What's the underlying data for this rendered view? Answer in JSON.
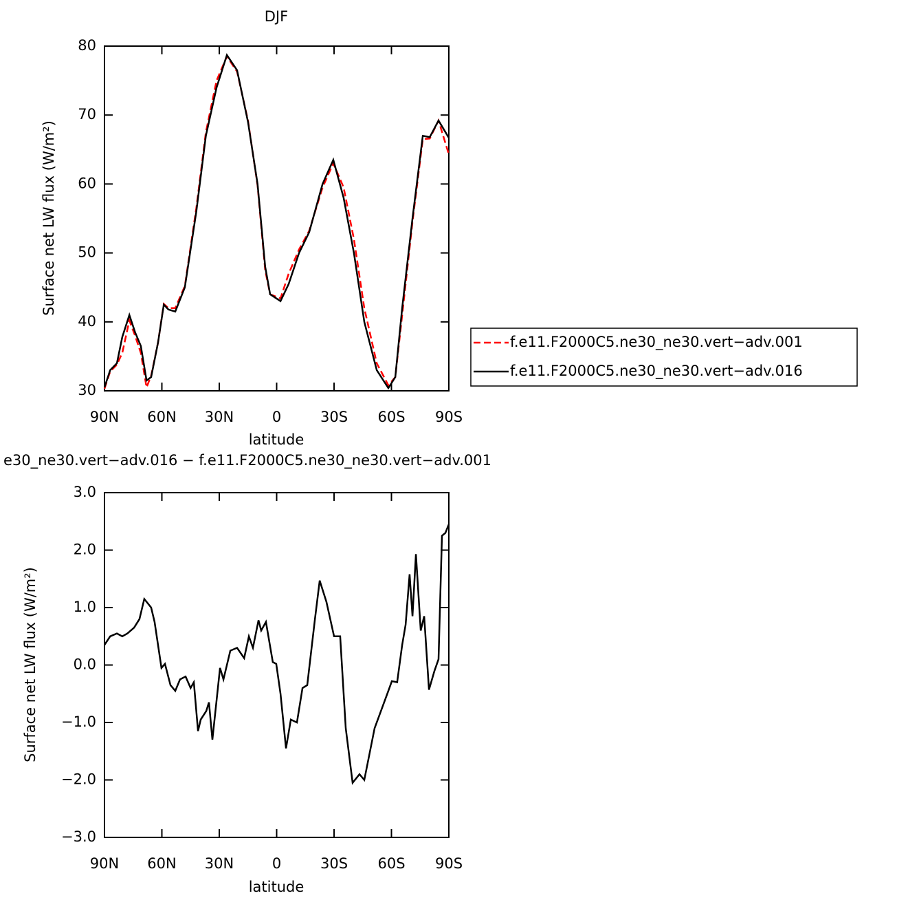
{
  "chart_data": [
    {
      "type": "line",
      "title": "DJF",
      "xlabel": "latitude",
      "ylabel": "Surface net LW flux (W/m²)",
      "x": [
        90,
        87,
        83.5,
        80.7,
        77,
        74,
        71,
        68,
        65.6,
        62,
        59,
        56.6,
        53,
        48,
        42,
        37,
        31.4,
        26,
        20.7,
        15,
        10,
        6,
        3.4,
        -2,
        -6.3,
        -11.7,
        -17,
        -24,
        -29.6,
        -35,
        -40.4,
        -45.8,
        -52.3,
        -58.4,
        -62,
        -65.6,
        -71,
        -76.4,
        -80,
        -84.6,
        -90
      ],
      "series": [
        {
          "name": "f.e11.F2000C5.ne30_ne30.vert−adv.001",
          "color": "#ff0000",
          "line_style": "dashed",
          "values": [
            30.3,
            32.8,
            33.8,
            35.5,
            40.2,
            38.0,
            35.5,
            30.5,
            32.2,
            37.0,
            42.6,
            42.0,
            42.0,
            45.2,
            56.5,
            67.5,
            75.0,
            78.5,
            76.3,
            69.2,
            59.8,
            47.5,
            44.0,
            43.4,
            47.0,
            50.5,
            53.2,
            59.5,
            63.0,
            59.5,
            52.0,
            42.0,
            34.0,
            30.8,
            32.0,
            41.0,
            54.5,
            66.5,
            66.6,
            69.2,
            64.3
          ]
        },
        {
          "name": "f.e11.F2000C5.ne30_ne30.vert−adv.016",
          "color": "#000000",
          "line_style": "solid",
          "values": [
            30.5,
            33.0,
            34.0,
            37.8,
            41.0,
            38.5,
            36.5,
            31.5,
            32.0,
            37.0,
            42.5,
            41.8,
            41.5,
            45.0,
            56.0,
            67.0,
            74.0,
            78.7,
            76.5,
            69.0,
            60.0,
            48.0,
            44.0,
            43.0,
            45.5,
            50.0,
            53.0,
            60.0,
            63.5,
            58.0,
            50.0,
            40.0,
            33.0,
            30.4,
            32.0,
            42.0,
            55.0,
            67.0,
            66.8,
            69.2,
            66.7
          ]
        }
      ],
      "xlim": [
        90,
        -90
      ],
      "xticks": [
        {
          "value": 90,
          "label": "90N"
        },
        {
          "value": 60,
          "label": "60N"
        },
        {
          "value": 30,
          "label": "30N"
        },
        0,
        {
          "value": -30,
          "label": "30S"
        },
        {
          "value": -60,
          "label": "60S"
        },
        {
          "value": -90,
          "label": "90S"
        }
      ],
      "ylim": [
        30,
        80
      ],
      "yticks": [
        30,
        40,
        50,
        60,
        70,
        80
      ],
      "legend": "right"
    },
    {
      "type": "line",
      "title": "e30_ne30.vert−adv.016 − f.e11.F2000C5.ne30_ne30.vert−adv.001",
      "xlabel": "latitude",
      "ylabel": "Surface net LW flux (W/m²)",
      "x": [
        90,
        87,
        83.5,
        80.7,
        78,
        74.5,
        71.7,
        69.2,
        65.6,
        63.8,
        60.2,
        58.4,
        55.5,
        53,
        50.5,
        47.6,
        45,
        43.3,
        41.1,
        39.7,
        36.8,
        35.4,
        33.6,
        29.6,
        27.8,
        24.2,
        20.7,
        17,
        14.5,
        12.4,
        9.5,
        8.1,
        5.6,
        2,
        0.2,
        -2,
        -4.9,
        -7.4,
        -10.6,
        -13.5,
        -16,
        -20,
        -22.5,
        -26,
        -30,
        -33.2,
        -36.1,
        -39.7,
        -43.3,
        -45.8,
        -51.2,
        -58.4,
        -60.2,
        -63,
        -65.6,
        -67.4,
        -69.5,
        -71,
        -72.8,
        -75.3,
        -77.1,
        -79.6,
        -82.5,
        -84.6,
        -86.4,
        -88.2,
        -90
      ],
      "series": [
        {
          "color": "#000000",
          "line_style": "solid",
          "values": [
            0.35,
            0.5,
            0.55,
            0.5,
            0.55,
            0.65,
            0.8,
            1.15,
            1.0,
            0.75,
            -0.05,
            0.02,
            -0.35,
            -0.45,
            -0.25,
            -0.2,
            -0.4,
            -0.3,
            -1.15,
            -0.95,
            -0.8,
            -0.65,
            -1.3,
            -0.05,
            -0.25,
            0.25,
            0.3,
            0.12,
            0.5,
            0.3,
            0.78,
            0.6,
            0.75,
            0.05,
            0.02,
            -0.5,
            -1.45,
            -0.95,
            -1.0,
            -0.4,
            -0.35,
            0.8,
            1.47,
            1.1,
            0.5,
            0.5,
            -1.1,
            -2.05,
            -1.9,
            -2.0,
            -1.1,
            -0.45,
            -0.28,
            -0.3,
            0.35,
            0.7,
            1.58,
            0.85,
            1.93,
            0.6,
            0.85,
            -0.43,
            -0.1,
            0.1,
            2.25,
            2.3,
            2.45
          ]
        }
      ],
      "xlim": [
        90,
        -90
      ],
      "xticks": [
        {
          "value": 90,
          "label": "90N"
        },
        {
          "value": 60,
          "label": "60N"
        },
        {
          "value": 30,
          "label": "30N"
        },
        0,
        {
          "value": -30,
          "label": "30S"
        },
        {
          "value": -60,
          "label": "60S"
        },
        {
          "value": -90,
          "label": "90S"
        }
      ],
      "ylim": [
        -3,
        3
      ],
      "yticks": [
        {
          "value": -3,
          "label": "−3.0"
        },
        {
          "value": -2,
          "label": "−2.0"
        },
        {
          "value": -1,
          "label": "−1.0"
        },
        {
          "value": 0,
          "label": "0.0"
        },
        {
          "value": 1,
          "label": "1.0"
        },
        {
          "value": 2,
          "label": "2.0"
        },
        {
          "value": 3,
          "label": "3.0"
        }
      ]
    }
  ]
}
